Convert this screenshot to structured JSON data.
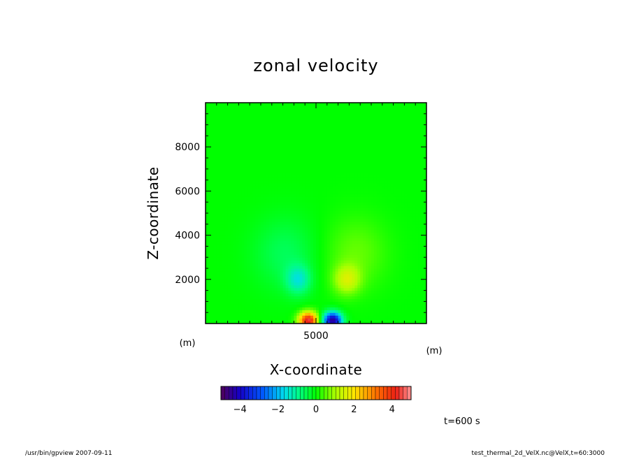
{
  "chart_data": {
    "type": "heatmap",
    "title": "zonal velocity",
    "xlabel": "X-coordinate",
    "ylabel": "Z-coordinate",
    "x_unit": "(m)",
    "y_unit": "(m)",
    "xlim": [
      0,
      10000
    ],
    "ylim": [
      0,
      10000
    ],
    "x_ticks": [
      5000
    ],
    "y_ticks": [
      2000,
      4000,
      6000,
      8000
    ],
    "colorbar": {
      "range": [
        -5,
        5
      ],
      "ticks": [
        -4,
        -2,
        0,
        2,
        4
      ]
    },
    "features": [
      {
        "x": 4650,
        "z": 150,
        "u": 4.5
      },
      {
        "x": 5750,
        "z": 150,
        "u": -4.5
      },
      {
        "x": 4200,
        "z": 2000,
        "u": -1.3
      },
      {
        "x": 6400,
        "z": 2000,
        "u": 1.3
      }
    ],
    "time_label": "t=600 s",
    "footer_left": "/usr/bin/gpview   2007-09-11",
    "footer_right": "test_thermal_2d_VelX.nc@VelX,t=60:3000"
  }
}
